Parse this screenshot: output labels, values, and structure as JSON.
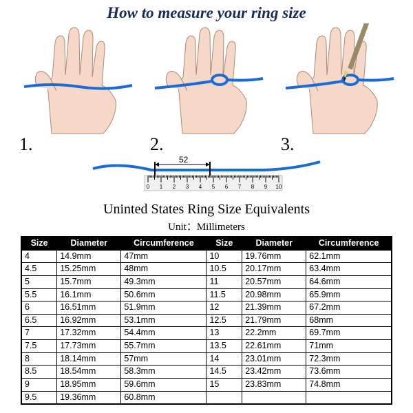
{
  "title": "How to measure your ring size",
  "title_color": "#1a2a5a",
  "steps": [
    "1.",
    "2.",
    "3."
  ],
  "hand": {
    "skin_color": "#f5d8c8",
    "outline_color": "#a88a78",
    "string_color": "#1a6bd6",
    "nail_color": "#e6b8a8"
  },
  "pencil": {
    "body_color": "#9a8a68",
    "tip_color": "#e8c878",
    "point_color": "#1a1a1a"
  },
  "ruler": {
    "measurement_label": "52",
    "string_color": "#1a6bd6",
    "ruler_bg": "#f0f0f0",
    "tick_labels": [
      "0",
      "1",
      "2",
      "3",
      "4",
      "5",
      "6",
      "7",
      "8",
      "9",
      "10"
    ]
  },
  "table_title": "Uninted States Ring Size Equivalents",
  "table_unit": "Unit：Millimeters",
  "table": {
    "header_bg": "#000000",
    "header_fg": "#ffffff",
    "border_color": "#000000",
    "columns": [
      "Size",
      "Diameter",
      "Circumference",
      "Size",
      "Diameter",
      "Circumference"
    ],
    "rows": [
      [
        "4",
        "14.9mm",
        "47mm",
        "10",
        "19.76mm",
        "62.1mm"
      ],
      [
        "4.5",
        "15.25mm",
        "48mm",
        "10.5",
        "20.17mm",
        "63.4mm"
      ],
      [
        "5",
        "15.7mm",
        "49.3mm",
        "11",
        "20.57mm",
        "64.6mm"
      ],
      [
        "5.5",
        "16.1mm",
        "50.6mm",
        "11.5",
        "20.98mm",
        "65.9mm"
      ],
      [
        "6",
        "16.51mm",
        "51.9mm",
        "12",
        "21.39mm",
        "67.2mm"
      ],
      [
        "6.5",
        "16.92mm",
        "53.1mm",
        "12.5",
        "21.79mm",
        "68mm"
      ],
      [
        "7",
        "17.32mm",
        "54.4mm",
        "13",
        "22.2mm",
        "69.7mm"
      ],
      [
        "7.5",
        "17.73mm",
        "55.7mm",
        "13.5",
        "22.61mm",
        "71mm"
      ],
      [
        "8",
        "18.14mm",
        "57mm",
        "14",
        "23.01mm",
        "72.3mm"
      ],
      [
        "8.5",
        "18.54mm",
        "58.3mm",
        "14.5",
        "23.42mm",
        "73.6mm"
      ],
      [
        "9",
        "18.95mm",
        "59.6mm",
        "15",
        "23.83mm",
        "74.8mm"
      ],
      [
        "9.5",
        "19.36mm",
        "60.8mm",
        "",
        "",
        ""
      ]
    ]
  }
}
